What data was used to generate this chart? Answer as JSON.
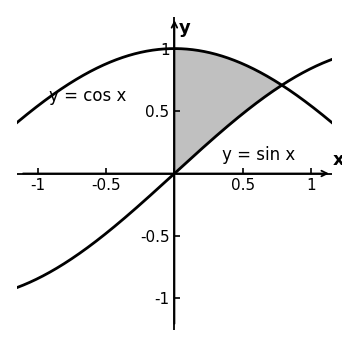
{
  "xlim": [
    -1.15,
    1.15
  ],
  "ylim": [
    -1.25,
    1.25
  ],
  "xticks": [
    -1,
    -0.5,
    0,
    0.5,
    1
  ],
  "yticks": [
    -1,
    -0.5,
    0.5,
    1
  ],
  "curve_color": "#000000",
  "shade_color": "#c0c0c0",
  "shade_alpha": 1.0,
  "cos_label": "y = cos x",
  "sin_label": "y = sin x",
  "xlabel": "x",
  "ylabel": "y",
  "label_fontsize": 12,
  "tick_fontsize": 11,
  "linewidth": 2.0,
  "pi_over_4": 0.7853981633974483,
  "figsize": [
    3.42,
    3.47
  ],
  "dpi": 100
}
